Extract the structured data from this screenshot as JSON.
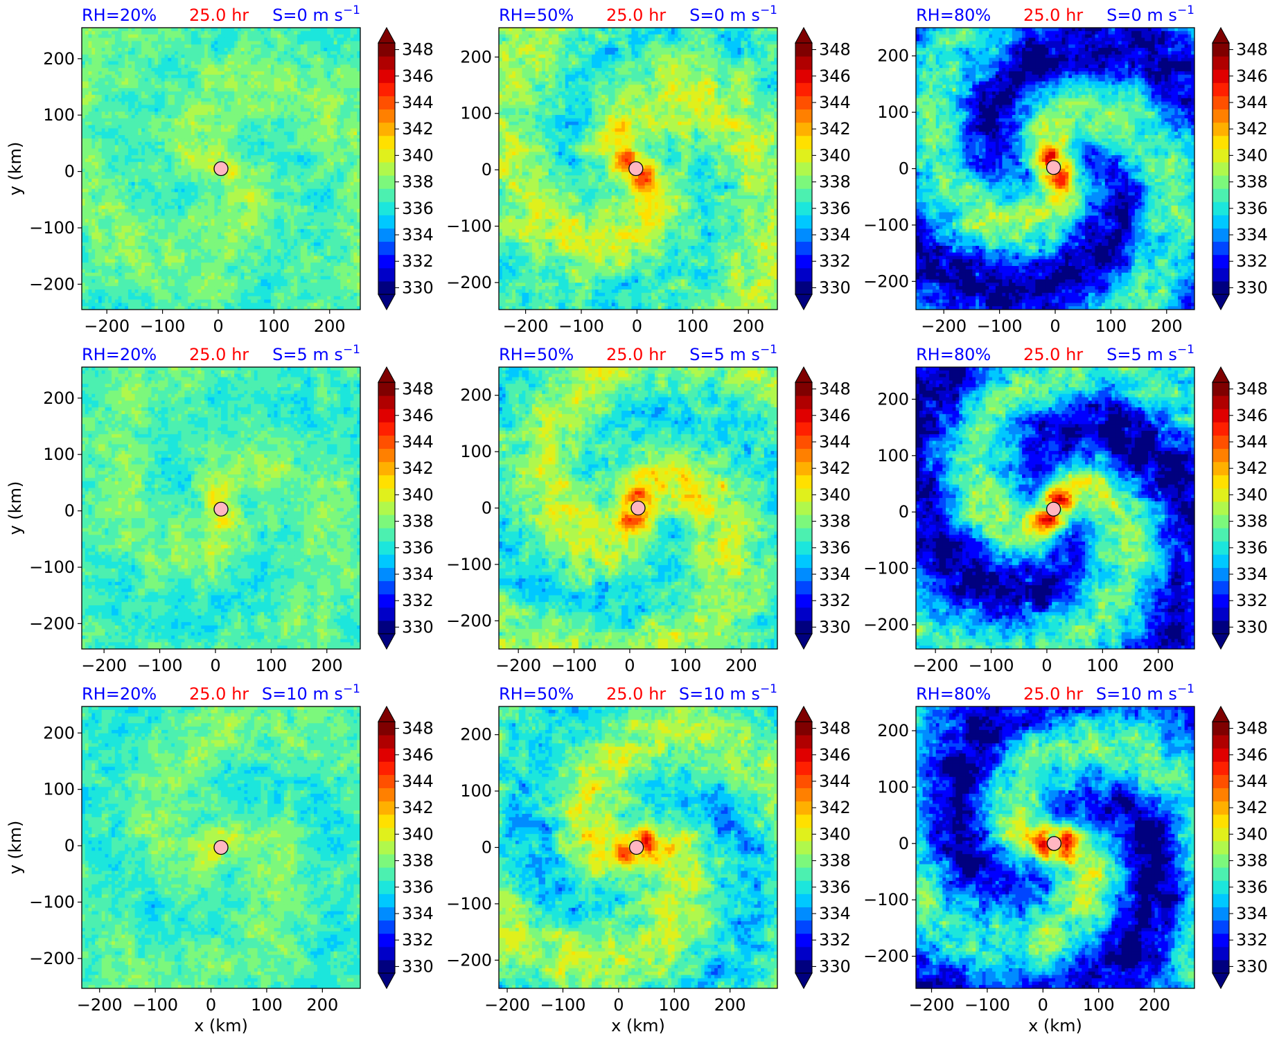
{
  "figure": {
    "xlabel": "x (km)",
    "ylabel": "y (km)",
    "colorbar_min": 330,
    "colorbar_max": 349,
    "colorbar_ticks": [
      "330",
      "332",
      "334",
      "336",
      "338",
      "340",
      "342",
      "344",
      "346",
      "348"
    ],
    "colormap": [
      "#00007f",
      "#0000c8",
      "#0000ff",
      "#0046ff",
      "#008cff",
      "#00c8ff",
      "#1ce6dc",
      "#4cf0b0",
      "#7cf87c",
      "#b0f84c",
      "#e0f01c",
      "#ffe000",
      "#ffb000",
      "#ff8000",
      "#ff5000",
      "#ff2000",
      "#e00000",
      "#b00000",
      "#7f0000"
    ],
    "label_colors": {
      "rh": "#0000ff",
      "time": "#ff0000",
      "shear": "#0000ff"
    },
    "center_marker_color": "#ffb6c1"
  },
  "chart_data": [
    {
      "type": "heatmap",
      "rh": "RH=20%",
      "time": "25.0 hr",
      "shear": "S=0 m s",
      "shear_sup": "−1",
      "xticks": [
        "−200",
        "−100",
        "0",
        "100",
        "200"
      ],
      "yticks": [
        "200",
        "100",
        "0",
        "−100",
        "−200"
      ],
      "xlim": [
        -245,
        255
      ],
      "ylim": [
        -245,
        255
      ],
      "center": [
        5,
        5
      ],
      "core_mean": 338.2,
      "core_spread": 2.3,
      "band_amp": 1.0,
      "env_dry": 0.8
    },
    {
      "type": "heatmap",
      "rh": "RH=50%",
      "time": "25.0 hr",
      "shear": "S=0 m s",
      "shear_sup": "−1",
      "xticks": [
        "−200",
        "−100",
        "0",
        "100",
        "200"
      ],
      "yticks": [
        "200",
        "100",
        "0",
        "−100",
        "−200"
      ],
      "xlim": [
        -248,
        252
      ],
      "ylim": [
        -248,
        252
      ],
      "center": [
        -2,
        2
      ],
      "core_mean": 339.0,
      "core_spread": 3.0,
      "band_amp": 2.2,
      "env_dry": 1.6
    },
    {
      "type": "heatmap",
      "rh": "RH=80%",
      "time": "25.0 hr",
      "shear": "S=0 m s",
      "shear_sup": "−1",
      "xticks": [
        "−200",
        "−100",
        "0",
        "100",
        "200"
      ],
      "yticks": [
        "200",
        "100",
        "0",
        "−100",
        "−200"
      ],
      "xlim": [
        -250,
        250
      ],
      "ylim": [
        -250,
        250
      ],
      "center": [
        -3,
        2
      ],
      "core_mean": 337.0,
      "core_spread": 3.5,
      "band_amp": 3.5,
      "env_dry": 5.0
    },
    {
      "type": "heatmap",
      "rh": "RH=20%",
      "time": "25.0 hr",
      "shear": "S=5 m s",
      "shear_sup": "−1",
      "xticks": [
        "−200",
        "−100",
        "0",
        "100",
        "200"
      ],
      "yticks": [
        "200",
        "100",
        "0",
        "−100",
        "−200"
      ],
      "xlim": [
        -240,
        260
      ],
      "ylim": [
        -245,
        255
      ],
      "center": [
        10,
        3
      ],
      "core_mean": 338.0,
      "core_spread": 2.2,
      "band_amp": 1.0,
      "env_dry": 0.9
    },
    {
      "type": "heatmap",
      "rh": "RH=50%",
      "time": "25.0 hr",
      "shear": "S=5 m s",
      "shear_sup": "−1",
      "xticks": [
        "−200",
        "−100",
        "0",
        "100",
        "200"
      ],
      "yticks": [
        "200",
        "100",
        "0",
        "−100",
        "−200"
      ],
      "xlim": [
        -235,
        265
      ],
      "ylim": [
        -250,
        250
      ],
      "center": [
        15,
        0
      ],
      "core_mean": 339.0,
      "core_spread": 3.0,
      "band_amp": 2.4,
      "env_dry": 2.0
    },
    {
      "type": "heatmap",
      "rh": "RH=80%",
      "time": "25.0 hr",
      "shear": "S=5 m s",
      "shear_sup": "−1",
      "xticks": [
        "−200",
        "−100",
        "0",
        "100",
        "200"
      ],
      "yticks": [
        "200",
        "100",
        "0",
        "−100",
        "−200"
      ],
      "xlim": [
        -235,
        265
      ],
      "ylim": [
        -243,
        257
      ],
      "center": [
        12,
        5
      ],
      "core_mean": 337.0,
      "core_spread": 3.5,
      "band_amp": 3.8,
      "env_dry": 5.0
    },
    {
      "type": "heatmap",
      "rh": "RH=20%",
      "time": "25.0 hr",
      "shear": "S=10 m s",
      "shear_sup": "−1",
      "xticks": [
        "−200",
        "−100",
        "0",
        "100",
        "200"
      ],
      "yticks": [
        "200",
        "100",
        "0",
        "−100",
        "−200"
      ],
      "xlim": [
        -232,
        268
      ],
      "ylim": [
        -253,
        247
      ],
      "center": [
        18,
        -3
      ],
      "core_mean": 338.0,
      "core_spread": 2.2,
      "band_amp": 1.0,
      "env_dry": 1.0
    },
    {
      "type": "heatmap",
      "rh": "RH=50%",
      "time": "25.0 hr",
      "shear": "S=10 m s",
      "shear_sup": "−1",
      "xticks": [
        "−200",
        "−100",
        "0",
        "100",
        "200"
      ],
      "yticks": [
        "200",
        "100",
        "0",
        "−100",
        "−200"
      ],
      "xlim": [
        -215,
        285
      ],
      "ylim": [
        -250,
        250
      ],
      "center": [
        32,
        0
      ],
      "core_mean": 338.8,
      "core_spread": 3.0,
      "band_amp": 2.5,
      "env_dry": 2.4
    },
    {
      "type": "heatmap",
      "rh": "RH=80%",
      "time": "25.0 hr",
      "shear": "S=10 m s",
      "shear_sup": "−1",
      "xticks": [
        "−200",
        "−100",
        "0",
        "100",
        "200"
      ],
      "yticks": [
        "200",
        "100",
        "0",
        "−100",
        "−200"
      ],
      "xlim": [
        -228,
        272
      ],
      "ylim": [
        -257,
        243
      ],
      "center": [
        20,
        0
      ],
      "core_mean": 337.0,
      "core_spread": 3.5,
      "band_amp": 3.6,
      "env_dry": 5.0
    }
  ]
}
